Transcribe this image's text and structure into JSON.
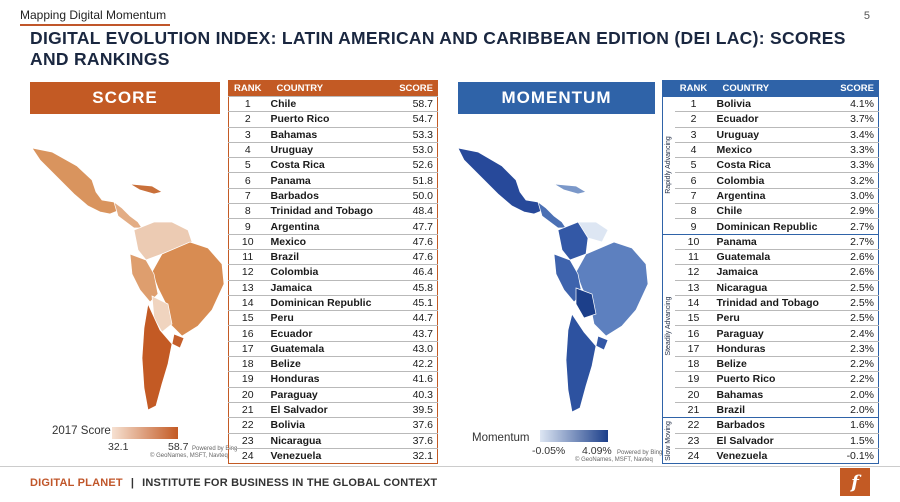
{
  "header": {
    "section_label": "Mapping Digital Momentum",
    "page_number": "5",
    "title": "DIGITAL EVOLUTION INDEX: LATIN AMERICAN AND CARIBBEAN EDITION (DEI LAC): SCORES AND RANKINGS"
  },
  "score_panel": {
    "banner": "SCORE",
    "legend_title": "2017 Score",
    "legend_min": "32.1",
    "legend_max": "58.7",
    "credit_line1": "Powered by Bing",
    "credit_line2": "© GeoNames, MSFT, Navteq",
    "color_low": "#f6e1d2",
    "color_high": "#c35a24"
  },
  "momentum_panel": {
    "banner": "MOMENTUM",
    "legend_title": "Momentum",
    "legend_min": "-0.05%",
    "legend_max": "4.09%",
    "credit_line1": "Powered by Bing",
    "credit_line2": "© GeoNames, MSFT, Navteq",
    "color_low": "#dde6f3",
    "color_high": "#1c3f8a"
  },
  "score_table": {
    "headers": {
      "rank": "RANK",
      "country": "COUNTRY",
      "score": "SCORE"
    },
    "rows": [
      {
        "rank": "1",
        "country": "Chile",
        "score": "58.7"
      },
      {
        "rank": "2",
        "country": "Puerto Rico",
        "score": "54.7"
      },
      {
        "rank": "3",
        "country": "Bahamas",
        "score": "53.3"
      },
      {
        "rank": "4",
        "country": "Uruguay",
        "score": "53.0"
      },
      {
        "rank": "5",
        "country": "Costa Rica",
        "score": "52.6"
      },
      {
        "rank": "6",
        "country": "Panama",
        "score": "51.8"
      },
      {
        "rank": "7",
        "country": "Barbados",
        "score": "50.0"
      },
      {
        "rank": "8",
        "country": "Trinidad and Tobago",
        "score": "48.4"
      },
      {
        "rank": "9",
        "country": "Argentina",
        "score": "47.7"
      },
      {
        "rank": "10",
        "country": "Mexico",
        "score": "47.6"
      },
      {
        "rank": "11",
        "country": "Brazil",
        "score": "47.6"
      },
      {
        "rank": "12",
        "country": "Colombia",
        "score": "46.4"
      },
      {
        "rank": "13",
        "country": "Jamaica",
        "score": "45.8"
      },
      {
        "rank": "14",
        "country": "Dominican Republic",
        "score": "45.1"
      },
      {
        "rank": "15",
        "country": "Peru",
        "score": "44.7"
      },
      {
        "rank": "16",
        "country": "Ecuador",
        "score": "43.7"
      },
      {
        "rank": "17",
        "country": "Guatemala",
        "score": "43.0"
      },
      {
        "rank": "18",
        "country": "Belize",
        "score": "42.2"
      },
      {
        "rank": "19",
        "country": "Honduras",
        "score": "41.6"
      },
      {
        "rank": "20",
        "country": "Paraguay",
        "score": "40.3"
      },
      {
        "rank": "21",
        "country": "El Salvador",
        "score": "39.5"
      },
      {
        "rank": "22",
        "country": "Bolivia",
        "score": "37.6"
      },
      {
        "rank": "23",
        "country": "Nicaragua",
        "score": "37.6"
      },
      {
        "rank": "24",
        "country": "Venezuela",
        "score": "32.1"
      }
    ]
  },
  "momentum_table": {
    "headers": {
      "rank": "RANK",
      "country": "COUNTRY",
      "score": "SCORE"
    },
    "groups": [
      {
        "label": "Rapidly Advancing",
        "start": 0,
        "count": 9
      },
      {
        "label": "Steadily Advancing",
        "start": 9,
        "count": 12
      },
      {
        "label": "Slow Moving",
        "start": 21,
        "count": 3
      }
    ],
    "rows": [
      {
        "rank": "1",
        "country": "Bolivia",
        "score": "4.1%"
      },
      {
        "rank": "2",
        "country": "Ecuador",
        "score": "3.7%"
      },
      {
        "rank": "3",
        "country": "Uruguay",
        "score": "3.4%"
      },
      {
        "rank": "4",
        "country": "Mexico",
        "score": "3.3%"
      },
      {
        "rank": "5",
        "country": "Costa Rica",
        "score": "3.3%"
      },
      {
        "rank": "6",
        "country": "Colombia",
        "score": "3.2%"
      },
      {
        "rank": "7",
        "country": "Argentina",
        "score": "3.0%"
      },
      {
        "rank": "8",
        "country": "Chile",
        "score": "2.9%"
      },
      {
        "rank": "9",
        "country": "Dominican Republic",
        "score": "2.7%"
      },
      {
        "rank": "10",
        "country": "Panama",
        "score": "2.7%"
      },
      {
        "rank": "11",
        "country": "Guatemala",
        "score": "2.6%"
      },
      {
        "rank": "12",
        "country": "Jamaica",
        "score": "2.6%"
      },
      {
        "rank": "13",
        "country": "Nicaragua",
        "score": "2.5%"
      },
      {
        "rank": "14",
        "country": "Trinidad and Tobago",
        "score": "2.5%"
      },
      {
        "rank": "15",
        "country": "Peru",
        "score": "2.5%"
      },
      {
        "rank": "16",
        "country": "Paraguay",
        "score": "2.4%"
      },
      {
        "rank": "17",
        "country": "Honduras",
        "score": "2.3%"
      },
      {
        "rank": "18",
        "country": "Belize",
        "score": "2.2%"
      },
      {
        "rank": "19",
        "country": "Puerto Rico",
        "score": "2.2%"
      },
      {
        "rank": "20",
        "country": "Bahamas",
        "score": "2.0%"
      },
      {
        "rank": "21",
        "country": "Brazil",
        "score": "2.0%"
      },
      {
        "rank": "22",
        "country": "Barbados",
        "score": "1.6%"
      },
      {
        "rank": "23",
        "country": "El Salvador",
        "score": "1.5%"
      },
      {
        "rank": "24",
        "country": "Venezuela",
        "score": "-0.1%"
      }
    ]
  },
  "footer": {
    "brand": "DIGITAL PLANET",
    "separator": "|",
    "institute": "INSTITUTE FOR BUSINESS IN THE GLOBAL CONTEXT",
    "logo_text": "f"
  }
}
